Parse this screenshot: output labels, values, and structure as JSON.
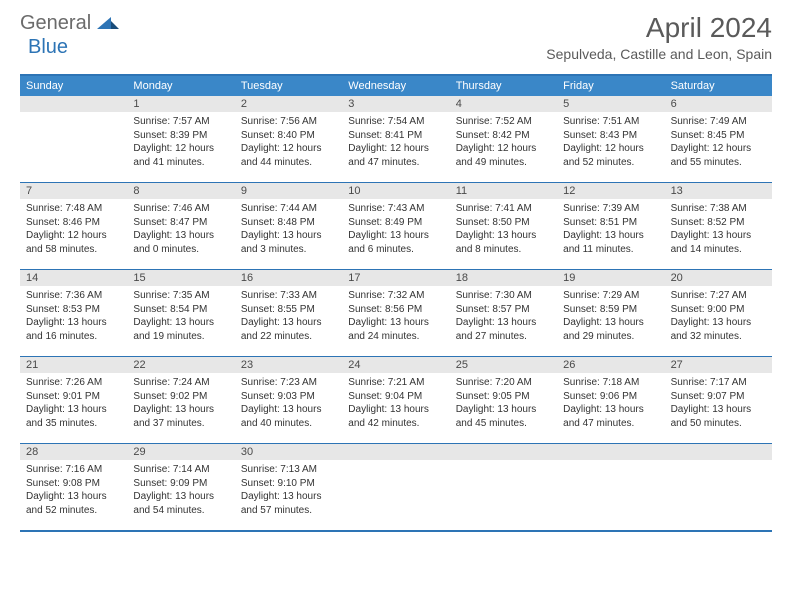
{
  "logo": {
    "text_general": "General",
    "text_blue": "Blue"
  },
  "title": "April 2024",
  "location": "Sepulveda, Castille and Leon, Spain",
  "colors": {
    "header_bar": "#3a87c8",
    "border": "#2d74b5",
    "daynum_bg": "#e7e7e7",
    "logo_blue": "#2d74b5",
    "logo_gray": "#6b6b6b",
    "text": "#333333"
  },
  "days_of_week": [
    "Sunday",
    "Monday",
    "Tuesday",
    "Wednesday",
    "Thursday",
    "Friday",
    "Saturday"
  ],
  "weeks": [
    [
      null,
      {
        "n": 1,
        "sr": "7:57 AM",
        "ss": "8:39 PM",
        "dl": "12 hours and 41 minutes."
      },
      {
        "n": 2,
        "sr": "7:56 AM",
        "ss": "8:40 PM",
        "dl": "12 hours and 44 minutes."
      },
      {
        "n": 3,
        "sr": "7:54 AM",
        "ss": "8:41 PM",
        "dl": "12 hours and 47 minutes."
      },
      {
        "n": 4,
        "sr": "7:52 AM",
        "ss": "8:42 PM",
        "dl": "12 hours and 49 minutes."
      },
      {
        "n": 5,
        "sr": "7:51 AM",
        "ss": "8:43 PM",
        "dl": "12 hours and 52 minutes."
      },
      {
        "n": 6,
        "sr": "7:49 AM",
        "ss": "8:45 PM",
        "dl": "12 hours and 55 minutes."
      }
    ],
    [
      {
        "n": 7,
        "sr": "7:48 AM",
        "ss": "8:46 PM",
        "dl": "12 hours and 58 minutes."
      },
      {
        "n": 8,
        "sr": "7:46 AM",
        "ss": "8:47 PM",
        "dl": "13 hours and 0 minutes."
      },
      {
        "n": 9,
        "sr": "7:44 AM",
        "ss": "8:48 PM",
        "dl": "13 hours and 3 minutes."
      },
      {
        "n": 10,
        "sr": "7:43 AM",
        "ss": "8:49 PM",
        "dl": "13 hours and 6 minutes."
      },
      {
        "n": 11,
        "sr": "7:41 AM",
        "ss": "8:50 PM",
        "dl": "13 hours and 8 minutes."
      },
      {
        "n": 12,
        "sr": "7:39 AM",
        "ss": "8:51 PM",
        "dl": "13 hours and 11 minutes."
      },
      {
        "n": 13,
        "sr": "7:38 AM",
        "ss": "8:52 PM",
        "dl": "13 hours and 14 minutes."
      }
    ],
    [
      {
        "n": 14,
        "sr": "7:36 AM",
        "ss": "8:53 PM",
        "dl": "13 hours and 16 minutes."
      },
      {
        "n": 15,
        "sr": "7:35 AM",
        "ss": "8:54 PM",
        "dl": "13 hours and 19 minutes."
      },
      {
        "n": 16,
        "sr": "7:33 AM",
        "ss": "8:55 PM",
        "dl": "13 hours and 22 minutes."
      },
      {
        "n": 17,
        "sr": "7:32 AM",
        "ss": "8:56 PM",
        "dl": "13 hours and 24 minutes."
      },
      {
        "n": 18,
        "sr": "7:30 AM",
        "ss": "8:57 PM",
        "dl": "13 hours and 27 minutes."
      },
      {
        "n": 19,
        "sr": "7:29 AM",
        "ss": "8:59 PM",
        "dl": "13 hours and 29 minutes."
      },
      {
        "n": 20,
        "sr": "7:27 AM",
        "ss": "9:00 PM",
        "dl": "13 hours and 32 minutes."
      }
    ],
    [
      {
        "n": 21,
        "sr": "7:26 AM",
        "ss": "9:01 PM",
        "dl": "13 hours and 35 minutes."
      },
      {
        "n": 22,
        "sr": "7:24 AM",
        "ss": "9:02 PM",
        "dl": "13 hours and 37 minutes."
      },
      {
        "n": 23,
        "sr": "7:23 AM",
        "ss": "9:03 PM",
        "dl": "13 hours and 40 minutes."
      },
      {
        "n": 24,
        "sr": "7:21 AM",
        "ss": "9:04 PM",
        "dl": "13 hours and 42 minutes."
      },
      {
        "n": 25,
        "sr": "7:20 AM",
        "ss": "9:05 PM",
        "dl": "13 hours and 45 minutes."
      },
      {
        "n": 26,
        "sr": "7:18 AM",
        "ss": "9:06 PM",
        "dl": "13 hours and 47 minutes."
      },
      {
        "n": 27,
        "sr": "7:17 AM",
        "ss": "9:07 PM",
        "dl": "13 hours and 50 minutes."
      }
    ],
    [
      {
        "n": 28,
        "sr": "7:16 AM",
        "ss": "9:08 PM",
        "dl": "13 hours and 52 minutes."
      },
      {
        "n": 29,
        "sr": "7:14 AM",
        "ss": "9:09 PM",
        "dl": "13 hours and 54 minutes."
      },
      {
        "n": 30,
        "sr": "7:13 AM",
        "ss": "9:10 PM",
        "dl": "13 hours and 57 minutes."
      },
      null,
      null,
      null,
      null
    ]
  ],
  "labels": {
    "sunrise": "Sunrise:",
    "sunset": "Sunset:",
    "daylight": "Daylight:"
  }
}
